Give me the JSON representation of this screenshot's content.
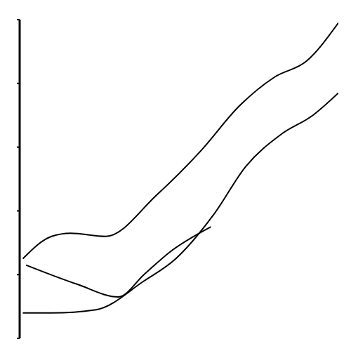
{
  "chart_data": {
    "type": "line",
    "xlim": [
      0,
      100
    ],
    "ylim": [
      0,
      100
    ],
    "yticks": [
      0,
      20,
      40,
      60,
      80,
      100
    ],
    "tick_labels": false,
    "grid": false,
    "color": "#000000",
    "series": [
      {
        "color": "#000000",
        "x": [
          1,
          10,
          16,
          27,
          43,
          57,
          69,
          80,
          90,
          100
        ],
        "values": [
          25,
          32,
          33,
          32,
          45,
          59,
          73,
          82,
          87,
          99
        ]
      },
      {
        "color": "#000000",
        "x": [
          1,
          10,
          24,
          39,
          49,
          61,
          71,
          82,
          92,
          100
        ],
        "values": [
          8,
          8,
          9,
          18,
          25,
          39,
          54,
          64,
          70,
          77
        ]
      },
      {
        "color": "#000000",
        "x": [
          2,
          18,
          31,
          39,
          47,
          60
        ],
        "values": [
          23,
          17,
          13,
          20,
          27,
          35
        ]
      }
    ]
  }
}
